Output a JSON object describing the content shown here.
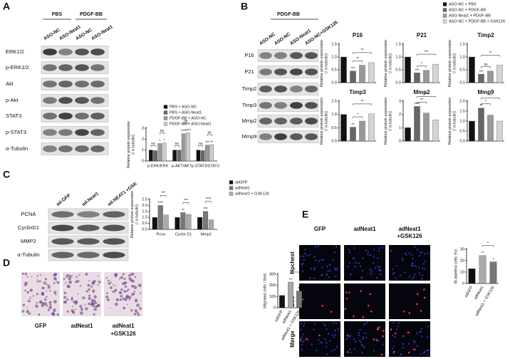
{
  "panels": [
    "A",
    "B",
    "C",
    "D",
    "E"
  ],
  "blot_a": {
    "groups": [
      "PBS",
      "PDGF-BB"
    ],
    "lanes": [
      "ASO-NC",
      "ASO-Neat1",
      "ASO-NC",
      "ASO-Neat1"
    ],
    "rows": [
      "ERK1/2",
      "p-ERK1/2",
      "Akt",
      "p-Akt",
      "STAT3",
      "p-STAT3",
      "α-Tubulin"
    ]
  },
  "blot_b": {
    "group": "PDGF-BB",
    "lanes": [
      "ASO-NC",
      "ASO-NC",
      "ASO-Neat1",
      "ASO-NC+GSK126"
    ],
    "rows": [
      "P16",
      "P21",
      "Timp2",
      "Timp3",
      "Mmp2",
      "Mmp9"
    ]
  },
  "legend_b": [
    "ASO-NC + PBS",
    "ASO-NC + PDGF-BB",
    "ASO-Neat1 + PDGF-BB",
    "ASO-NC + PDGF-BB + GSK126"
  ],
  "blot_c": {
    "lanes": [
      "ad-GFP",
      "ad-Neat1",
      "ad-NEAT1 +GSK"
    ],
    "rows": [
      "PCNA",
      "CyclinD1",
      "MMP2",
      "α-Tubulin"
    ]
  },
  "images_d": {
    "columns": [
      [
        "GFP"
      ],
      [
        "adNeat1"
      ],
      [
        "adNeat1",
        "+GSK126"
      ]
    ]
  },
  "images_e": {
    "columns": [
      [
        "GFP"
      ],
      [
        "adNeat1"
      ],
      [
        "adNeat1",
        "+GSK126"
      ]
    ],
    "rows": [
      "Hochest",
      "EdU",
      "Merge"
    ]
  },
  "chart_data": [
    {
      "type": "bar",
      "categories": [
        "p-ERK/ERK",
        "p-AKT/AKT",
        "p-STAT3/STAT3"
      ],
      "series": [
        {
          "name": "PBS + ASO-NC",
          "color": "#111111",
          "values": [
            1.0,
            1.0,
            1.0
          ]
        },
        {
          "name": "PBS + ASO-Neat1",
          "color": "#666666",
          "values": [
            0.95,
            1.0,
            0.95
          ]
        },
        {
          "name": "PDGF-BB + ASO-NC",
          "color": "#999999",
          "values": [
            1.6,
            2.5,
            1.45
          ]
        },
        {
          "name": "PDGF-BB + ASO-Neat1",
          "color": "#cccccc",
          "values": [
            1.65,
            2.55,
            1.5
          ]
        }
      ],
      "ylim": [
        0,
        3
      ],
      "yticks": [
        0,
        1,
        2,
        3
      ],
      "y_label": [
        "Relative protein expression",
        "(/ α-tubulin)"
      ],
      "annotations": [
        "ns",
        "ns",
        "*",
        "*",
        "ns",
        "ns",
        "****",
        "****",
        "ns",
        "ns",
        "***",
        "**"
      ]
    },
    {
      "type": "bar",
      "title": "P16",
      "values": [
        1.0,
        0.45,
        0.68,
        0.78
      ],
      "colors": [
        "#111111",
        "#666666",
        "#999999",
        "#d4d4d4"
      ],
      "ylim": [
        0,
        1.5
      ],
      "yticks": [
        {
          "value": 0,
          "label": "0.0"
        },
        {
          "value": 0.5,
          "label": "0.5"
        },
        {
          "value": 1,
          "label": "1.0"
        },
        {
          "value": 1.5,
          "label": "1.5"
        }
      ],
      "y_label": [
        "Relative protein expression",
        "(/ α-tubulin)"
      ],
      "annotations": [
        "***",
        "**",
        "**"
      ]
    },
    {
      "type": "bar",
      "title": "P21",
      "values": [
        1.0,
        0.38,
        0.48,
        0.72
      ],
      "colors": [
        "#111111",
        "#666666",
        "#999999",
        "#d4d4d4"
      ],
      "ylim": [
        0,
        1.5
      ],
      "yticks": [
        {
          "value": 0,
          "label": "0.0"
        },
        {
          "value": 0.5,
          "label": "0.5"
        },
        {
          "value": 1,
          "label": "1.0"
        },
        {
          "value": 1.5,
          "label": "1.5"
        }
      ],
      "y_label": [
        "Relative protein expression",
        "(/ α-tubulin)"
      ],
      "annotations": [
        "***",
        "*",
        "***"
      ]
    },
    {
      "type": "bar",
      "title": "Timp2",
      "values": [
        1.0,
        0.33,
        0.45,
        0.68
      ],
      "colors": [
        "#111111",
        "#666666",
        "#999999",
        "#d4d4d4"
      ],
      "ylim": [
        0,
        1.5
      ],
      "yticks": [
        {
          "value": 0,
          "label": "0.0"
        },
        {
          "value": 0.5,
          "label": "0.5"
        },
        {
          "value": 1,
          "label": "1.0"
        },
        {
          "value": 1.5,
          "label": "1.5"
        }
      ],
      "y_label": [
        "Relative protein expression",
        "(/ α-tubulin)"
      ],
      "annotations": [
        "***",
        "ns",
        "**"
      ]
    },
    {
      "type": "bar",
      "title": "Timp3",
      "values": [
        1.0,
        0.52,
        0.75,
        1.02
      ],
      "colors": [
        "#111111",
        "#666666",
        "#999999",
        "#d4d4d4"
      ],
      "ylim": [
        0,
        1.5
      ],
      "yticks": [
        {
          "value": 0,
          "label": "0.0"
        },
        {
          "value": 0.5,
          "label": "0.5"
        },
        {
          "value": 1,
          "label": "1.0"
        },
        {
          "value": 1.5,
          "label": "1.5"
        }
      ],
      "y_label": [
        "Relative protein expression",
        "(/ α-tubulin)"
      ],
      "annotations": [
        "**",
        "*",
        "**"
      ]
    },
    {
      "type": "bar",
      "title": "Mmp2",
      "values": [
        1.0,
        2.6,
        2.1,
        1.6
      ],
      "colors": [
        "#111111",
        "#666666",
        "#999999",
        "#d4d4d4"
      ],
      "ylim": [
        0,
        3
      ],
      "yticks": [
        0,
        1,
        2,
        3
      ],
      "y_label": [
        "Relative protein expression",
        "(/ α-tubulin)"
      ],
      "annotations": [
        "****",
        "**",
        "***"
      ]
    },
    {
      "type": "bar",
      "title": "Mmp9",
      "values": [
        1.0,
        1.65,
        1.3,
        1.0
      ],
      "colors": [
        "#111111",
        "#666666",
        "#999999",
        "#d4d4d4"
      ],
      "ylim": [
        0,
        2
      ],
      "yticks": [
        {
          "value": 0,
          "label": "0.0"
        },
        {
          "value": 0.5,
          "label": "0.5"
        },
        {
          "value": 1,
          "label": "1.0"
        },
        {
          "value": 1.5,
          "label": "1.5"
        },
        {
          "value": 2,
          "label": "2.0"
        }
      ],
      "y_label": [
        "Relative protein expression",
        "(/ α-tubulin)"
      ],
      "annotations": [
        "**",
        "*",
        "**"
      ]
    },
    {
      "type": "bar",
      "categories": [
        "Pcna",
        "Cyclin D1",
        "Mmp2"
      ],
      "series": [
        {
          "name": "adGFP",
          "color": "#111111",
          "values": [
            1.0,
            1.0,
            1.0
          ]
        },
        {
          "name": "adNeat1",
          "color": "#777777",
          "values": [
            2.0,
            1.4,
            1.5
          ]
        },
        {
          "name": "adNeat1 + GSK126",
          "color": "#aaaaaa",
          "values": [
            1.2,
            1.25,
            0.8
          ]
        }
      ],
      "ylim": [
        0,
        2.5
      ],
      "yticks": [
        {
          "value": 0,
          "label": "0.0"
        },
        {
          "value": 0.5,
          "label": "0.5"
        },
        {
          "value": 1,
          "label": "1.0"
        },
        {
          "value": 1.5,
          "label": "1.5"
        },
        {
          "value": 2,
          "label": "2.0"
        },
        {
          "value": 2.5,
          "label": "2.5"
        }
      ],
      "y_label": [
        "Relative protein expression",
        "(/ α-tubulin)"
      ],
      "annotations": [
        "****",
        "***",
        "**",
        "***",
        "***",
        "****"
      ]
    },
    {
      "type": "bar",
      "categories": [
        "adGFP",
        "adNeat1",
        "adNeat1 + GSK126"
      ],
      "values": [
        110,
        230,
        150
      ],
      "colors": [
        "#111111",
        "#aaaaaa",
        "#777777"
      ],
      "ylim": [
        0,
        300
      ],
      "yticks": [
        0,
        100,
        200,
        300
      ],
      "y_label": [
        "Migrated cells / field"
      ],
      "annotations": [
        "**",
        "**",
        "*"
      ]
    },
    {
      "type": "bar",
      "categories": [
        "adGFP",
        "adNeat1",
        "adNeat1 + GSK126"
      ],
      "values": [
        13,
        24.5,
        19
      ],
      "colors": [
        "#111111",
        "#aaaaaa",
        "#777777"
      ],
      "ylim": [
        0,
        30
      ],
      "yticks": [
        0,
        10,
        20,
        30
      ],
      "y_label": [
        "Bi-labelled cells (%)"
      ],
      "annotations": [
        "**",
        "*",
        "*"
      ]
    }
  ]
}
